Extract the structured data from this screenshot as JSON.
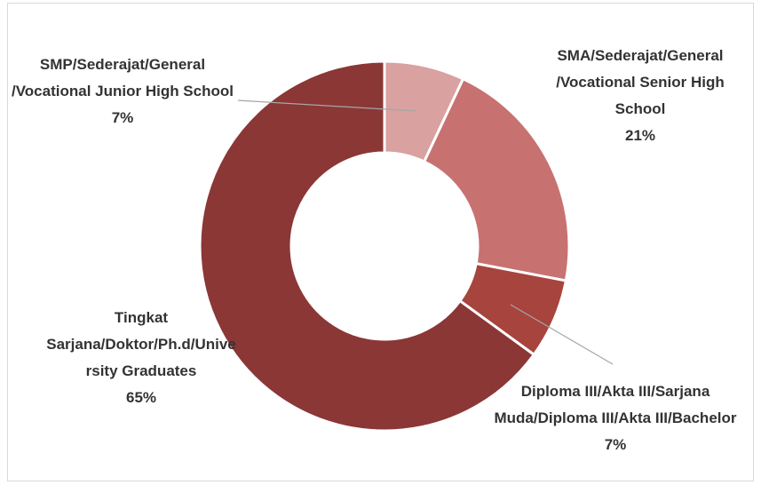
{
  "chart_data": {
    "type": "donut",
    "categories": [
      "SMP/Sederajat/General/Vocational Junior High School",
      "SMA/Sederajat/General/Vocational Senior High School",
      "Diploma III/Akta III/Sarjana Muda/Diploma III/Akta III/Bachelor",
      "Tingkat Sarjana/Doktor/Ph.d/University Graduates"
    ],
    "values": [
      7,
      21,
      7,
      65
    ],
    "value_labels": [
      "7%",
      "21%",
      "7%",
      "65%"
    ],
    "colors": [
      "#d9a1a0",
      "#c87171",
      "#a7443d",
      "#8a3736"
    ]
  }
}
